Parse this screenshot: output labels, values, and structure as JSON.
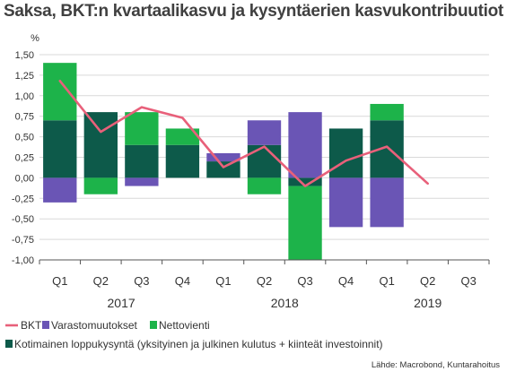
{
  "title": "Saksa, BKT:n kvartaalikasvu ja kysyntäerien kasvukontribuutiot",
  "source": "Lähde: Macrobond, Kuntarahoitus",
  "colors": {
    "bkt": "#e8607a",
    "varasto": "#6a55b5",
    "netto": "#1db34a",
    "koti": "#0d5a4a",
    "grid": "#d9d9d9",
    "axis": "#555555"
  },
  "chart_data": {
    "type": "bar",
    "ylabel": "%",
    "ylim": [
      -1.0,
      1.5
    ],
    "yticks": [
      "-1,00",
      "-0,75",
      "-0,50",
      "-0,25",
      "0,00",
      "0,25",
      "0,50",
      "0,75",
      "1,00",
      "1,25",
      "1,50"
    ],
    "ytick_values": [
      -1.0,
      -0.75,
      -0.5,
      -0.25,
      0,
      0.25,
      0.5,
      0.75,
      1.0,
      1.25,
      1.5
    ],
    "categories": [
      "Q1",
      "Q2",
      "Q3",
      "Q4",
      "Q1",
      "Q2",
      "Q3",
      "Q4",
      "Q1",
      "Q2",
      "Q3"
    ],
    "years": [
      {
        "label": "2017",
        "center_index": 1.5
      },
      {
        "label": "2018",
        "center_index": 5.5
      },
      {
        "label": "2019",
        "center_index": 9
      }
    ],
    "grid": true,
    "series": [
      {
        "name": "Kotimainen loppukysyntä (yksityinen ja julkinen kulutus + kiinteät investoinnit)",
        "kind": "bar",
        "color_key": "koti",
        "values": [
          0.7,
          0.8,
          0.4,
          0.4,
          0.2,
          0.4,
          -0.1,
          0.6,
          0.7,
          null,
          null
        ]
      },
      {
        "name": "Varastomuutokset",
        "kind": "bar",
        "color_key": "varasto",
        "values": [
          -0.3,
          0.0,
          -0.1,
          0.0,
          0.1,
          0.3,
          0.8,
          -0.6,
          -0.6,
          null,
          null
        ]
      },
      {
        "name": "Nettovienti",
        "kind": "bar",
        "color_key": "netto",
        "values": [
          0.7,
          -0.2,
          0.4,
          0.2,
          0.0,
          -0.2,
          -0.9,
          0.0,
          0.2,
          null,
          null
        ]
      },
      {
        "name": "BKT",
        "kind": "line",
        "color_key": "bkt",
        "values": [
          1.18,
          0.56,
          0.86,
          0.73,
          0.13,
          0.38,
          -0.1,
          0.21,
          0.38,
          -0.07,
          null
        ]
      }
    ],
    "legend": [
      {
        "label": "BKT",
        "kind": "line",
        "color_key": "bkt"
      },
      {
        "label": "Varastomuutokset",
        "kind": "box",
        "color_key": "varasto"
      },
      {
        "label": "Nettovienti",
        "kind": "box",
        "color_key": "netto"
      },
      {
        "label": "Kotimainen loppukysyntä (yksityinen ja julkinen kulutus + kiinteät investoinnit)",
        "kind": "box",
        "color_key": "koti"
      }
    ],
    "legend_placement": "bottom"
  }
}
